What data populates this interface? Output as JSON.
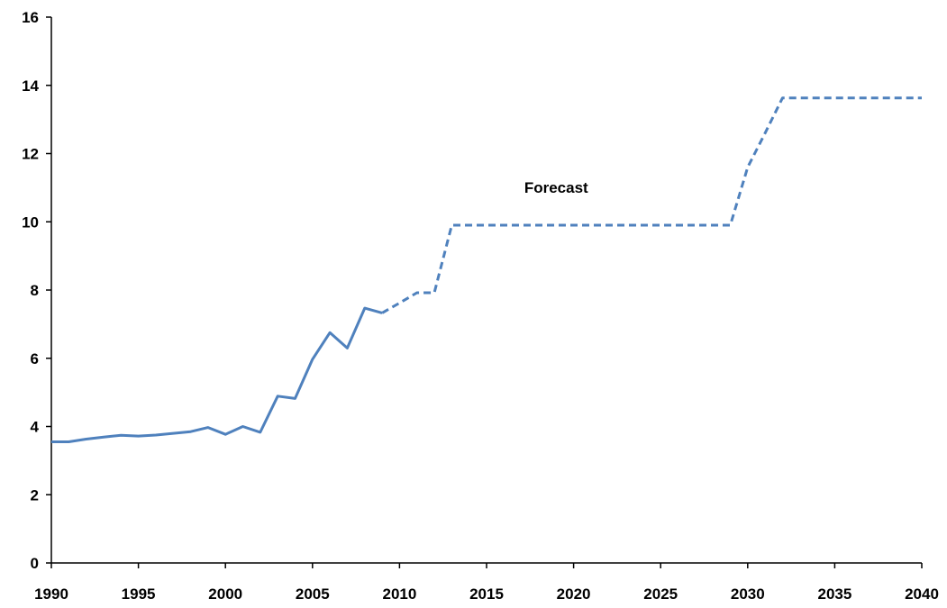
{
  "chart_data": {
    "type": "line",
    "title": "",
    "xlabel": "",
    "ylabel": "",
    "xlim": [
      1990,
      2040
    ],
    "ylim": [
      0,
      16
    ],
    "x_ticks": [
      1990,
      1995,
      2000,
      2005,
      2010,
      2015,
      2020,
      2025,
      2030,
      2035,
      2040
    ],
    "y_ticks": [
      0,
      2,
      4,
      6,
      8,
      10,
      12,
      14,
      16
    ],
    "grid": false,
    "legend": "none",
    "series": [
      {
        "style": "solid",
        "color": "#4f81bd",
        "x": [
          1990,
          1991,
          1992,
          1993,
          1994,
          1995,
          1996,
          1997,
          1998,
          1999,
          2000,
          2001,
          2002,
          2003,
          2004,
          2005,
          2006,
          2007,
          2008,
          2009
        ],
        "y": [
          3.55,
          3.55,
          3.63,
          3.69,
          3.74,
          3.72,
          3.75,
          3.8,
          3.85,
          3.97,
          3.77,
          4.0,
          3.83,
          4.89,
          4.82,
          5.97,
          6.75,
          6.3,
          7.47,
          7.33
        ]
      },
      {
        "style": "dashed",
        "color": "#4f81bd",
        "x": [
          2009,
          2010,
          2011,
          2012,
          2013,
          2029,
          2030,
          2031,
          2032,
          2040
        ],
        "y": [
          7.33,
          7.62,
          7.92,
          7.92,
          9.9,
          9.9,
          11.6,
          12.6,
          13.63,
          13.63
        ]
      }
    ],
    "annotations": [
      {
        "text": "Forecast",
        "x": 2019,
        "y": 10.85
      }
    ]
  }
}
